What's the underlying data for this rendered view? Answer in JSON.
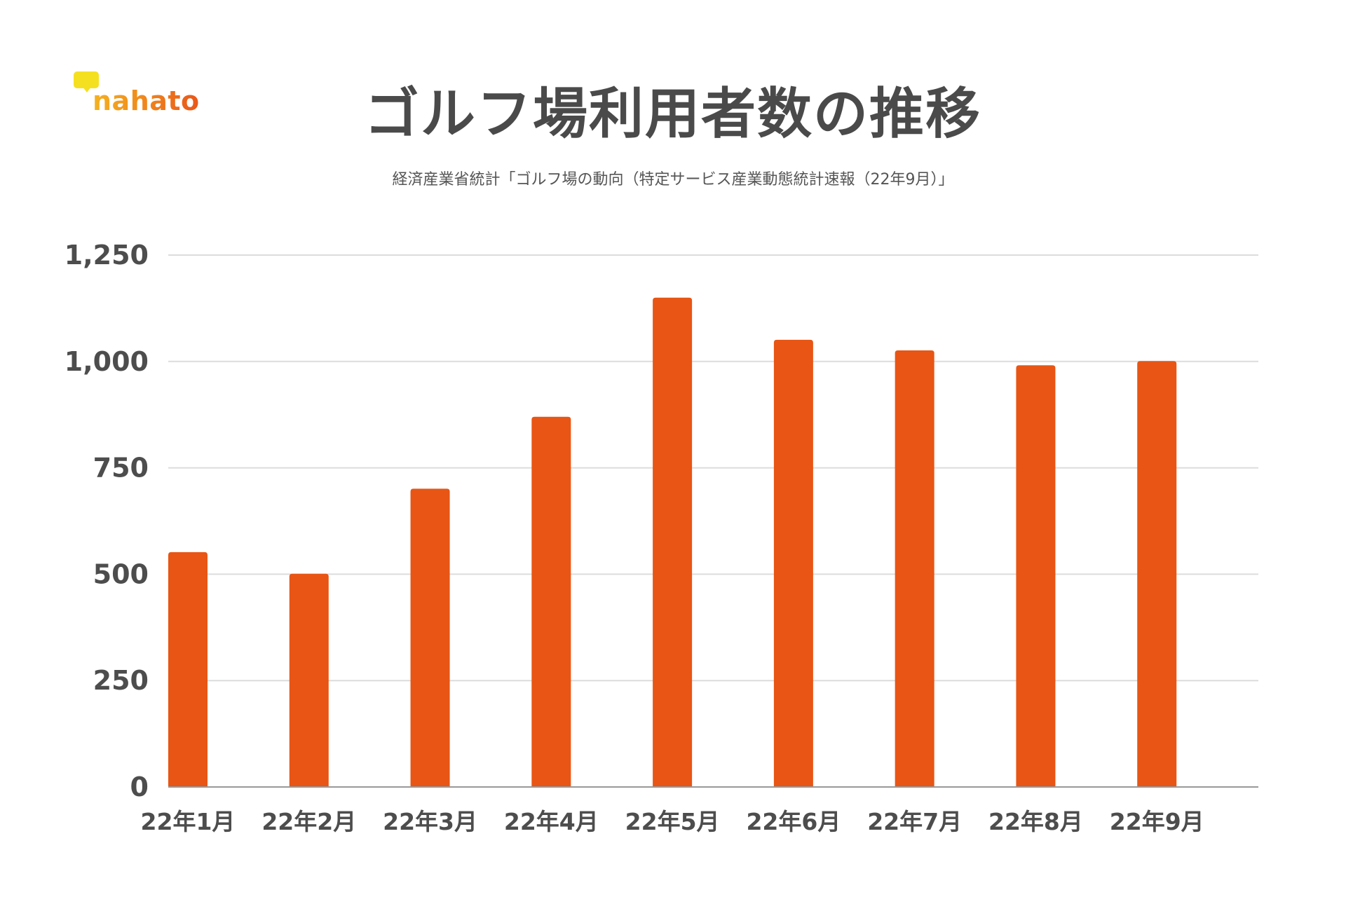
{
  "brand": {
    "logo_text": "nahato"
  },
  "title": "ゴルフ場利用者数の推移",
  "subtitle": "経済産業省統計「ゴルフ場の動向（特定サービス産業動態統計速報（22年9月）」",
  "colors": {
    "bar": "#e85514",
    "grid": "#dcdcdc",
    "axis": "#999999",
    "text": "#4d4d4d"
  },
  "chart_data": {
    "type": "bar",
    "categories": [
      "22年1月",
      "22年2月",
      "22年3月",
      "22年4月",
      "22年5月",
      "22年6月",
      "22年7月",
      "22年8月",
      "22年9月"
    ],
    "values": [
      552,
      501,
      701,
      870,
      1150,
      1051,
      1026,
      991,
      1001
    ],
    "ylim": [
      0,
      1250
    ],
    "yticks": [
      0,
      250,
      500,
      750,
      1000,
      1250
    ],
    "ytick_labels": [
      "0",
      "250",
      "500",
      "750",
      "1,000",
      "1,250"
    ],
    "grid": true,
    "legend": "none"
  }
}
